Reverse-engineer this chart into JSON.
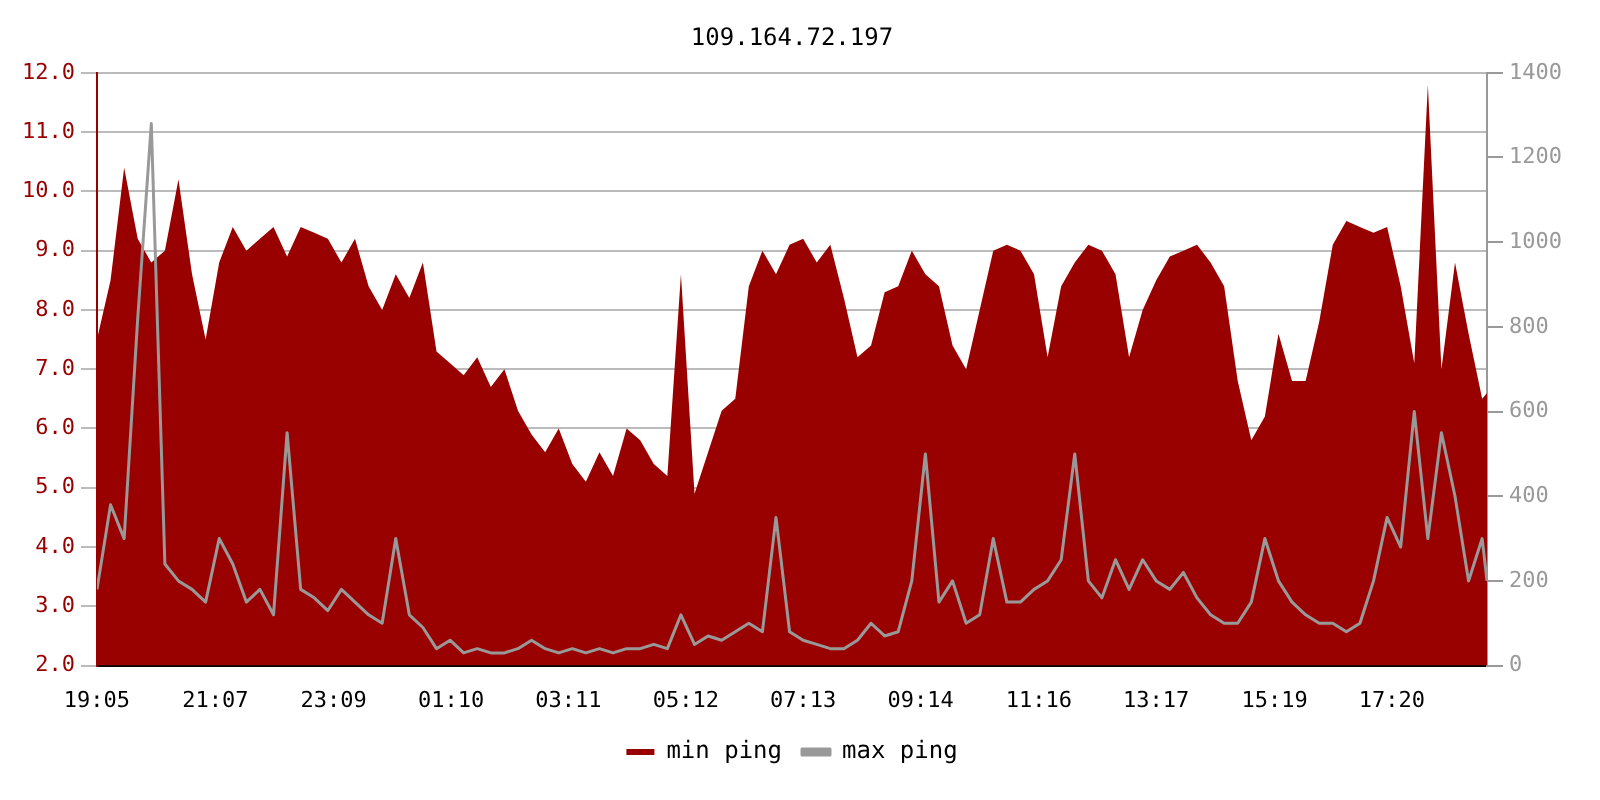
{
  "chart_data": {
    "type": "area",
    "title": "109.164.72.197",
    "x": [
      "--01-01T19:05",
      "--01-01T19:19",
      "--01-01T19:33",
      "--01-01T19:47",
      "--01-01T20:01",
      "--01-01T20:15",
      "--01-01T20:29",
      "--01-01T20:43",
      "--01-01T20:57",
      "--01-01T21:11",
      "--01-01T21:25",
      "--01-01T21:39",
      "--01-01T21:53",
      "--01-01T22:07",
      "--01-01T22:21",
      "--01-01T22:35",
      "--01-01T22:49",
      "--01-01T23:03",
      "--01-01T23:17",
      "--01-01T23:31",
      "--01-01T23:45",
      "--01-01T23:59",
      "--01-02T00:13",
      "--01-02T00:27",
      "--01-02T00:41",
      "--01-02T00:55",
      "--01-02T01:09",
      "--01-02T01:23",
      "--01-02T01:37",
      "--01-02T01:51",
      "--01-02T02:05",
      "--01-02T02:19",
      "--01-02T02:33",
      "--01-02T02:47",
      "--01-02T03:01",
      "--01-02T03:15",
      "--01-02T03:29",
      "--01-02T03:43",
      "--01-02T03:57",
      "--01-02T04:11",
      "--01-02T04:25",
      "--01-02T04:39",
      "--01-02T04:53",
      "--01-02T05:07",
      "--01-02T05:21",
      "--01-02T05:35",
      "--01-02T05:49",
      "--01-02T06:03",
      "--01-02T06:17",
      "--01-02T06:31",
      "--01-02T06:45",
      "--01-02T06:59",
      "--01-02T07:13",
      "--01-02T07:27",
      "--01-02T07:41",
      "--01-02T07:55",
      "--01-02T08:09",
      "--01-02T08:23",
      "--01-02T08:37",
      "--01-02T08:51",
      "--01-02T09:05",
      "--01-02T09:19",
      "--01-02T09:33",
      "--01-02T09:47",
      "--01-02T10:01",
      "--01-02T10:15",
      "--01-02T10:29",
      "--01-02T10:43",
      "--01-02T10:57",
      "--01-02T11:11",
      "--01-02T11:25",
      "--01-02T11:39",
      "--01-02T11:53",
      "--01-02T12:07",
      "--01-02T12:21",
      "--01-02T12:35",
      "--01-02T12:49",
      "--01-02T13:03",
      "--01-02T13:17",
      "--01-02T13:31",
      "--01-02T13:45",
      "--01-02T13:59",
      "--01-02T14:13",
      "--01-02T14:27",
      "--01-02T14:41",
      "--01-02T14:55",
      "--01-02T15:09",
      "--01-02T15:23",
      "--01-02T15:37",
      "--01-02T15:51",
      "--01-02T16:05",
      "--01-02T16:19",
      "--01-02T16:33",
      "--01-02T16:47",
      "--01-02T17:01",
      "--01-02T17:15",
      "--01-02T17:29",
      "--01-02T17:43",
      "--01-02T17:57",
      "--01-02T18:11",
      "--01-02T18:25",
      "--01-02T18:39",
      "--01-02T18:53",
      "--01-02T18:58"
    ],
    "series": [
      {
        "name": "min ping",
        "type": "area",
        "color": "#990000",
        "values": [
          7.5,
          8.5,
          10.4,
          9.2,
          8.8,
          9.0,
          10.2,
          8.6,
          7.5,
          8.8,
          9.4,
          9.0,
          9.2,
          9.4,
          8.9,
          9.4,
          9.3,
          9.2,
          8.8,
          9.2,
          8.4,
          8.0,
          8.6,
          8.2,
          8.8,
          7.3,
          7.1,
          6.9,
          7.2,
          6.7,
          7.0,
          6.3,
          5.9,
          5.6,
          6.0,
          5.4,
          5.1,
          5.6,
          5.2,
          6.0,
          5.8,
          5.4,
          5.2,
          8.6,
          4.9,
          5.6,
          6.3,
          6.5,
          8.4,
          9.0,
          8.6,
          9.1,
          9.2,
          8.8,
          9.1,
          8.2,
          7.2,
          7.4,
          8.3,
          8.4,
          9.0,
          8.6,
          8.4,
          7.4,
          7.0,
          8.0,
          9.0,
          9.1,
          9.0,
          8.6,
          7.2,
          8.4,
          8.8,
          9.1,
          9.0,
          8.6,
          7.2,
          8.0,
          8.5,
          8.9,
          9.0,
          9.1,
          8.8,
          8.4,
          6.8,
          5.8,
          6.2,
          7.6,
          6.8,
          6.8,
          7.8,
          9.1,
          9.5,
          9.4,
          9.3,
          9.4,
          8.4,
          7.1,
          11.8,
          7.0,
          8.8,
          7.6,
          6.5,
          6.6
        ]
      },
      {
        "name": "max ping",
        "type": "line",
        "axis": "y2",
        "color": "#999999",
        "values": [
          180,
          380,
          300,
          820,
          1280,
          240,
          200,
          180,
          150,
          300,
          240,
          150,
          180,
          120,
          550,
          180,
          160,
          130,
          180,
          150,
          120,
          100,
          300,
          120,
          90,
          40,
          60,
          30,
          40,
          30,
          30,
          40,
          60,
          40,
          30,
          40,
          30,
          40,
          30,
          40,
          40,
          50,
          40,
          120,
          50,
          70,
          60,
          80,
          100,
          80,
          350,
          80,
          60,
          50,
          40,
          40,
          60,
          100,
          70,
          80,
          200,
          500,
          150,
          200,
          100,
          120,
          300,
          150,
          150,
          180,
          200,
          250,
          500,
          200,
          160,
          250,
          180,
          250,
          200,
          180,
          220,
          160,
          120,
          100,
          100,
          150,
          300,
          200,
          150,
          120,
          100,
          100,
          80,
          100,
          200,
          350,
          280,
          600,
          300,
          550,
          400,
          200,
          300,
          200
        ]
      }
    ],
    "xlim": [
      "--01-01T19:05",
      "--01-02T18:58"
    ],
    "xticks": [
      {
        "value": "--01-01T19:05",
        "label": "19:05"
      },
      {
        "value": "--01-01T21:07",
        "label": "21:07"
      },
      {
        "value": "--01-01T23:09",
        "label": "23:09"
      },
      {
        "value": "--01-02T01:10",
        "label": "01:10"
      },
      {
        "value": "--01-02T03:11",
        "label": "03:11"
      },
      {
        "value": "--01-02T05:12",
        "label": "05:12"
      },
      {
        "value": "--01-02T07:13",
        "label": "07:13"
      },
      {
        "value": "--01-02T09:14",
        "label": "09:14"
      },
      {
        "value": "--01-02T11:16",
        "label": "11:16"
      },
      {
        "value": "--01-02T13:17",
        "label": "13:17"
      },
      {
        "value": "--01-02T15:19",
        "label": "15:19"
      },
      {
        "value": "--01-02T17:20",
        "label": "17:20"
      }
    ],
    "ylim": [
      2,
      12
    ],
    "yticks": [
      {
        "value": 2,
        "label": "2.0"
      },
      {
        "value": 3,
        "label": "3.0"
      },
      {
        "value": 4,
        "label": "4.0"
      },
      {
        "value": 5,
        "label": "5.0"
      },
      {
        "value": 6,
        "label": "6.0"
      },
      {
        "value": 7,
        "label": "7.0"
      },
      {
        "value": 8,
        "label": "8.0"
      },
      {
        "value": 9,
        "label": "9.0"
      },
      {
        "value": 10,
        "label": "10.0"
      },
      {
        "value": 11,
        "label": "11.0"
      },
      {
        "value": 12,
        "label": "12.0"
      }
    ],
    "y2lim": [
      0,
      1400
    ],
    "y2ticks": [
      0,
      200,
      400,
      600,
      800,
      1000,
      1200,
      1400
    ],
    "grid": "y",
    "legend": "bottom",
    "marker": "none",
    "line_style": "solid"
  }
}
